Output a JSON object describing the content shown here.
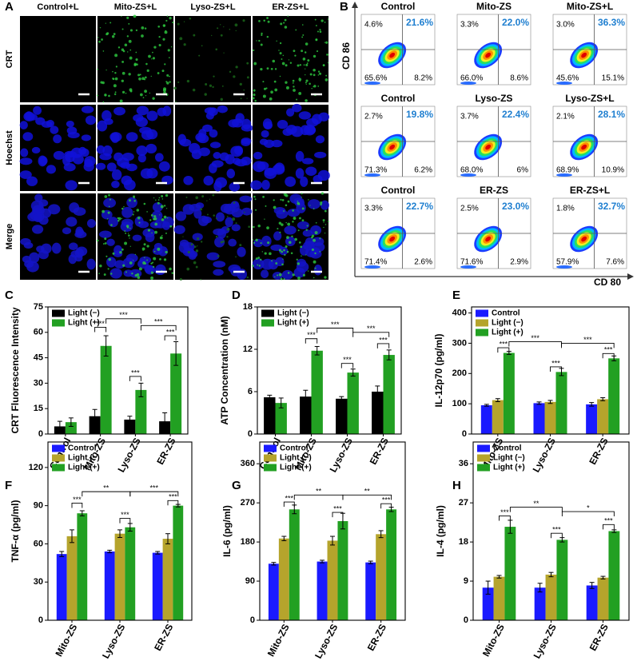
{
  "panel_a": {
    "label": "A",
    "columns": [
      "Control+L",
      "Mito-ZS+L",
      "Lyso-ZS+L",
      "ER-ZS+L"
    ],
    "rows": [
      "CRT",
      "Hoechst",
      "Merge"
    ]
  },
  "panel_b": {
    "label": "B",
    "y_axis": "CD 86",
    "x_axis": "CD 80",
    "plots": [
      {
        "title": "Control",
        "upper_left": "4.6%",
        "upper_right": "21.6%",
        "lower_left": "65.6%",
        "lower_right": "8.2%"
      },
      {
        "title": "Mito-ZS",
        "upper_left": "3.3%",
        "upper_right": "22.0%",
        "lower_left": "66.0%",
        "lower_right": "8.6%"
      },
      {
        "title": "Mito-ZS+L",
        "upper_left": "3.0%",
        "upper_right": "36.3%",
        "lower_left": "45.6%",
        "lower_right": "15.1%"
      },
      {
        "title": "Control",
        "upper_left": "2.7%",
        "upper_right": "19.8%",
        "lower_left": "71.3%",
        "lower_right": "6.2%"
      },
      {
        "title": "Lyso-ZS",
        "upper_left": "3.7%",
        "upper_right": "22.4%",
        "lower_left": "68.0%",
        "lower_right": "6%"
      },
      {
        "title": "Lyso-ZS+L",
        "upper_left": "2.1%",
        "upper_right": "28.1%",
        "lower_left": "68.9%",
        "lower_right": "10.9%"
      },
      {
        "title": "Control",
        "upper_left": "3.3%",
        "upper_right": "22.7%",
        "lower_left": "71.4%",
        "lower_right": "2.6%"
      },
      {
        "title": "ER-ZS",
        "upper_left": "2.5%",
        "upper_right": "23.0%",
        "lower_left": "71.6%",
        "lower_right": "2.9%"
      },
      {
        "title": "ER-ZS+L",
        "upper_left": "1.8%",
        "upper_right": "32.7%",
        "lower_left": "57.9%",
        "lower_right": "7.6%"
      }
    ]
  },
  "chart_data": [
    {
      "type": "bar",
      "label": "C",
      "y_label": "CRT Fluorescence Intensity",
      "categories": [
        "Control",
        "Mito-ZS",
        "Lyso-ZS",
        "ER-ZS"
      ],
      "series": [
        {
          "name": "Light (−)",
          "color": "#000000",
          "values": [
            4.5,
            10.5,
            8.5,
            7.5
          ],
          "errors": [
            3,
            4,
            2,
            5
          ]
        },
        {
          "name": "Light (+)",
          "color": "#22a022",
          "values": [
            7,
            52,
            26,
            47.5
          ],
          "errors": [
            2.5,
            6,
            4,
            7
          ]
        }
      ],
      "ylim": [
        0,
        75
      ],
      "yticks": [
        0,
        15,
        30,
        45,
        60,
        75
      ],
      "legend": "upper left",
      "annotations": [
        "***",
        "***",
        "***",
        "***",
        "***"
      ]
    },
    {
      "type": "bar",
      "label": "D",
      "y_label": "ATP Concentration (nM)",
      "categories": [
        "Control",
        "Mito-ZS",
        "Lyso-ZS",
        "ER-ZS"
      ],
      "series": [
        {
          "name": "Light (−)",
          "color": "#000000",
          "values": [
            5.2,
            5.3,
            5.0,
            6.0
          ],
          "errors": [
            0.3,
            0.9,
            0.3,
            0.8
          ]
        },
        {
          "name": "Light (+)",
          "color": "#22a022",
          "values": [
            4.4,
            11.8,
            8.7,
            11.2
          ],
          "errors": [
            0.7,
            0.6,
            0.5,
            0.7
          ]
        }
      ],
      "ylim": [
        0,
        18
      ],
      "yticks": [
        0,
        6,
        12,
        18
      ],
      "legend": "upper left",
      "annotations": [
        "***",
        "***",
        "***",
        "***",
        "***"
      ]
    },
    {
      "type": "bar",
      "label": "E",
      "y_label": "IL-12p70 (pg/ml)",
      "categories": [
        "Mito-ZS",
        "Lyso-ZS",
        "ER-ZS"
      ],
      "series": [
        {
          "name": "Control",
          "color": "#1a1aff",
          "values": [
            95,
            102,
            98
          ],
          "errors": [
            3,
            4,
            6
          ]
        },
        {
          "name": "Light (−)",
          "color": "#b5a42c",
          "values": [
            112,
            106,
            115
          ],
          "errors": [
            5,
            5,
            5
          ]
        },
        {
          "name": "Light (+)",
          "color": "#22a022",
          "values": [
            268,
            205,
            250
          ],
          "errors": [
            5,
            12,
            8
          ]
        }
      ],
      "ylim": [
        0,
        420
      ],
      "yticks": [
        0,
        100,
        200,
        300,
        400
      ],
      "legend": "upper left",
      "annotations": [
        "***",
        "***",
        "***",
        "***",
        "***"
      ]
    },
    {
      "type": "bar",
      "label": "F",
      "y_label": "TNF-α (pg/ml)",
      "categories": [
        "Mito-ZS",
        "Lyso-ZS",
        "ER-ZS"
      ],
      "series": [
        {
          "name": "Control",
          "color": "#1a1aff",
          "values": [
            52,
            54,
            53
          ],
          "errors": [
            2,
            1,
            1
          ]
        },
        {
          "name": "Light (−)",
          "color": "#b5a42c",
          "values": [
            66,
            68,
            64
          ],
          "errors": [
            5,
            3,
            4
          ]
        },
        {
          "name": "Light (+)",
          "color": "#22a022",
          "values": [
            84,
            73,
            90
          ],
          "errors": [
            2,
            3,
            1
          ]
        }
      ],
      "ylim": [
        0,
        140
      ],
      "yticks": [
        0,
        30,
        60,
        90,
        120
      ],
      "legend": "upper left",
      "annotations": [
        "***",
        "***",
        "***",
        "**",
        "***"
      ]
    },
    {
      "type": "bar",
      "label": "G",
      "y_label": "IL-6 (pg/ml)",
      "categories": [
        "Mito-ZS",
        "Lyso-ZS",
        "ER-ZS"
      ],
      "series": [
        {
          "name": "Control",
          "color": "#1a1aff",
          "values": [
            130,
            135,
            133
          ],
          "errors": [
            3,
            3,
            3
          ]
        },
        {
          "name": "Light (−)",
          "color": "#b5a42c",
          "values": [
            188,
            183,
            198
          ],
          "errors": [
            5,
            10,
            8
          ]
        },
        {
          "name": "Light (+)",
          "color": "#22a022",
          "values": [
            255,
            228,
            255
          ],
          "errors": [
            10,
            18,
            5
          ]
        }
      ],
      "ylim": [
        0,
        410
      ],
      "yticks": [
        0,
        90,
        180,
        270,
        360
      ],
      "legend": "upper left",
      "annotations": [
        "***",
        "***",
        "***",
        "**",
        "**"
      ]
    },
    {
      "type": "bar",
      "label": "H",
      "y_label": "IL-4 (pg/ml)",
      "categories": [
        "Mito-ZS",
        "Lyso-ZS",
        "ER-ZS"
      ],
      "series": [
        {
          "name": "Control",
          "color": "#1a1aff",
          "values": [
            7.5,
            7.5,
            8
          ],
          "errors": [
            1.5,
            1,
            0.7
          ]
        },
        {
          "name": "Light (−)",
          "color": "#b5a42c",
          "values": [
            10,
            10.5,
            9.8
          ],
          "errors": [
            0.3,
            0.5,
            0.3
          ]
        },
        {
          "name": "Light (+)",
          "color": "#22a022",
          "values": [
            21.5,
            18.5,
            20.5
          ],
          "errors": [
            1.5,
            0.5,
            0.3
          ]
        }
      ],
      "ylim": [
        0,
        41
      ],
      "yticks": [
        0,
        9,
        18,
        27,
        36
      ],
      "legend": "upper left",
      "annotations": [
        "***",
        "***",
        "***",
        "**",
        "*"
      ]
    }
  ]
}
